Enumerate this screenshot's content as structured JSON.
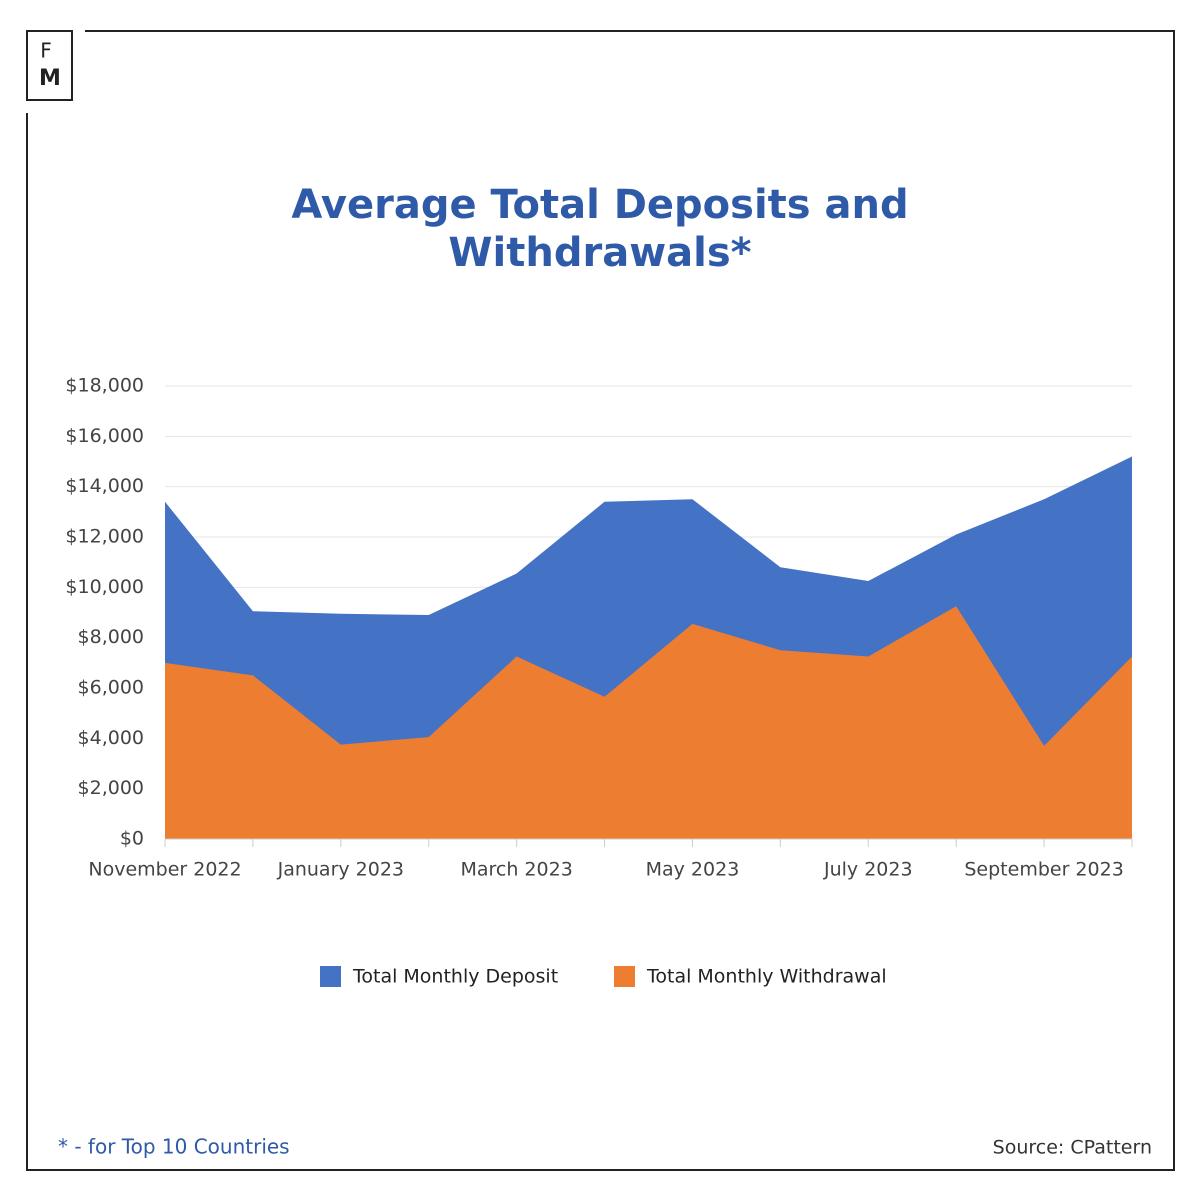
{
  "logo": {
    "top": "F",
    "bottom": "M"
  },
  "footnote": "* - for Top 10 Countries",
  "source": "Source: CPattern",
  "chart_data": {
    "type": "area",
    "title": [
      "Average Total Deposits and",
      "Withdrawals*"
    ],
    "categories": [
      "November 2022",
      null,
      "January 2023",
      null,
      "March 2023",
      null,
      "May 2023",
      null,
      "July 2023",
      null,
      "September 2023",
      null
    ],
    "series": [
      {
        "name": "Total Monthly Deposit",
        "color": "#4472c4",
        "values": [
          13400,
          9050,
          8950,
          8900,
          10550,
          13400,
          13500,
          10800,
          10250,
          12100,
          13500,
          15200
        ]
      },
      {
        "name": "Total Monthly Withdrawal",
        "color": "#ed7d31",
        "values": [
          7000,
          6500,
          3750,
          4050,
          7250,
          5650,
          8550,
          7500,
          7250,
          9250,
          3700,
          7250
        ]
      }
    ],
    "ylim": [
      0,
      18000
    ],
    "yticks": [
      {
        "value": 0,
        "label": "$0"
      },
      {
        "value": 2000,
        "label": "$2,000"
      },
      {
        "value": 4000,
        "label": "$4,000"
      },
      {
        "value": 6000,
        "label": "$6,000"
      },
      {
        "value": 8000,
        "label": "$8,000"
      },
      {
        "value": 10000,
        "label": "$10,000"
      },
      {
        "value": 12000,
        "label": "$12,000"
      },
      {
        "value": 14000,
        "label": "$14,000"
      },
      {
        "value": 16000,
        "label": "$16,000"
      },
      {
        "value": 18000,
        "label": "$18,000"
      }
    ],
    "grid": true,
    "legend": "bottom"
  }
}
